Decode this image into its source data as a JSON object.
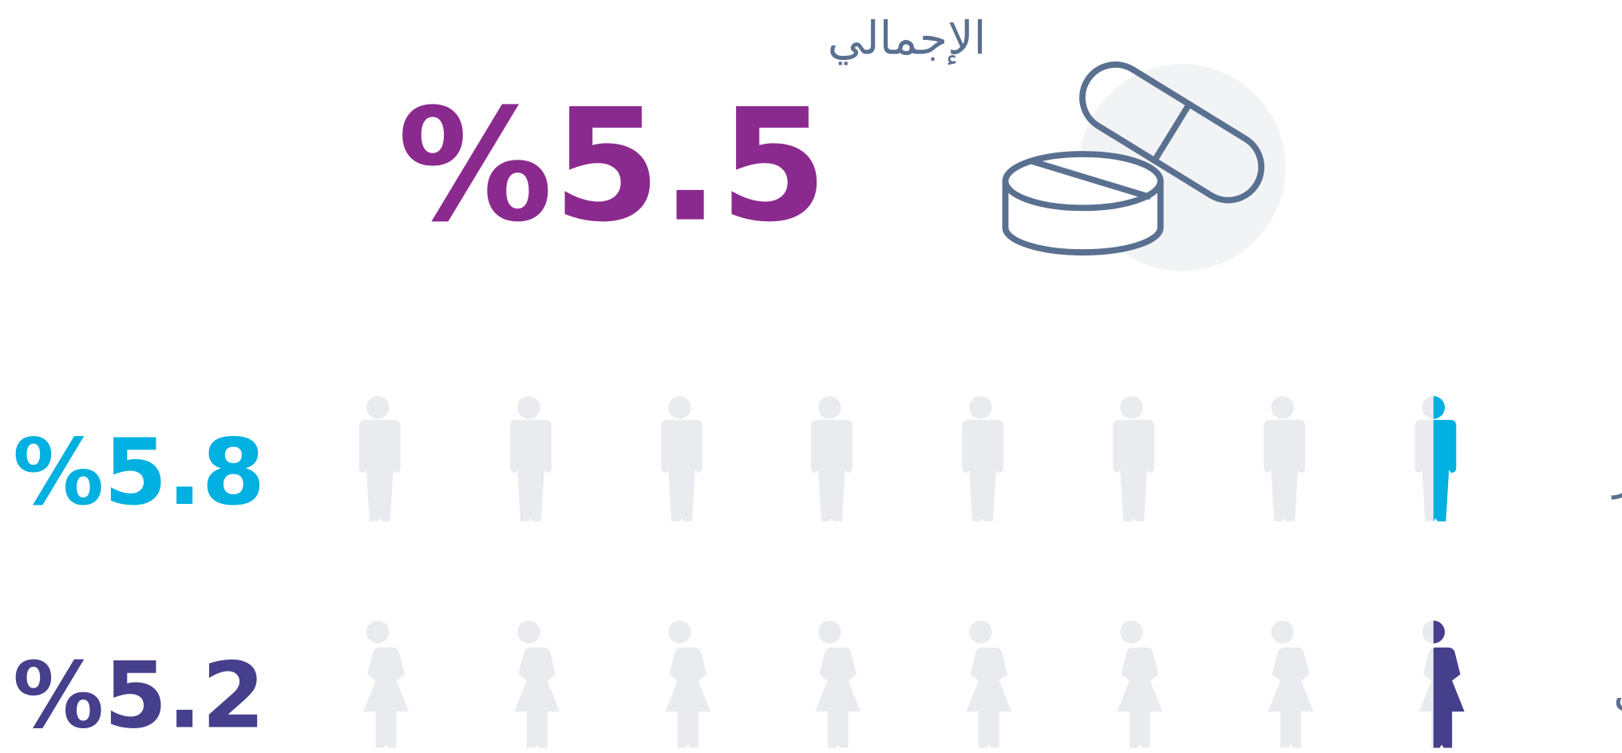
{
  "total": {
    "label": "الإجمالي",
    "value": "%5.5",
    "color": "#8b2a8e"
  },
  "rows": [
    {
      "label": "ذكور",
      "value": "%5.8",
      "color": "#00b0e0",
      "figure": "male"
    },
    {
      "label": "إناث",
      "value": "%5.2",
      "color": "#463f8c",
      "figure": "female"
    }
  ]
}
